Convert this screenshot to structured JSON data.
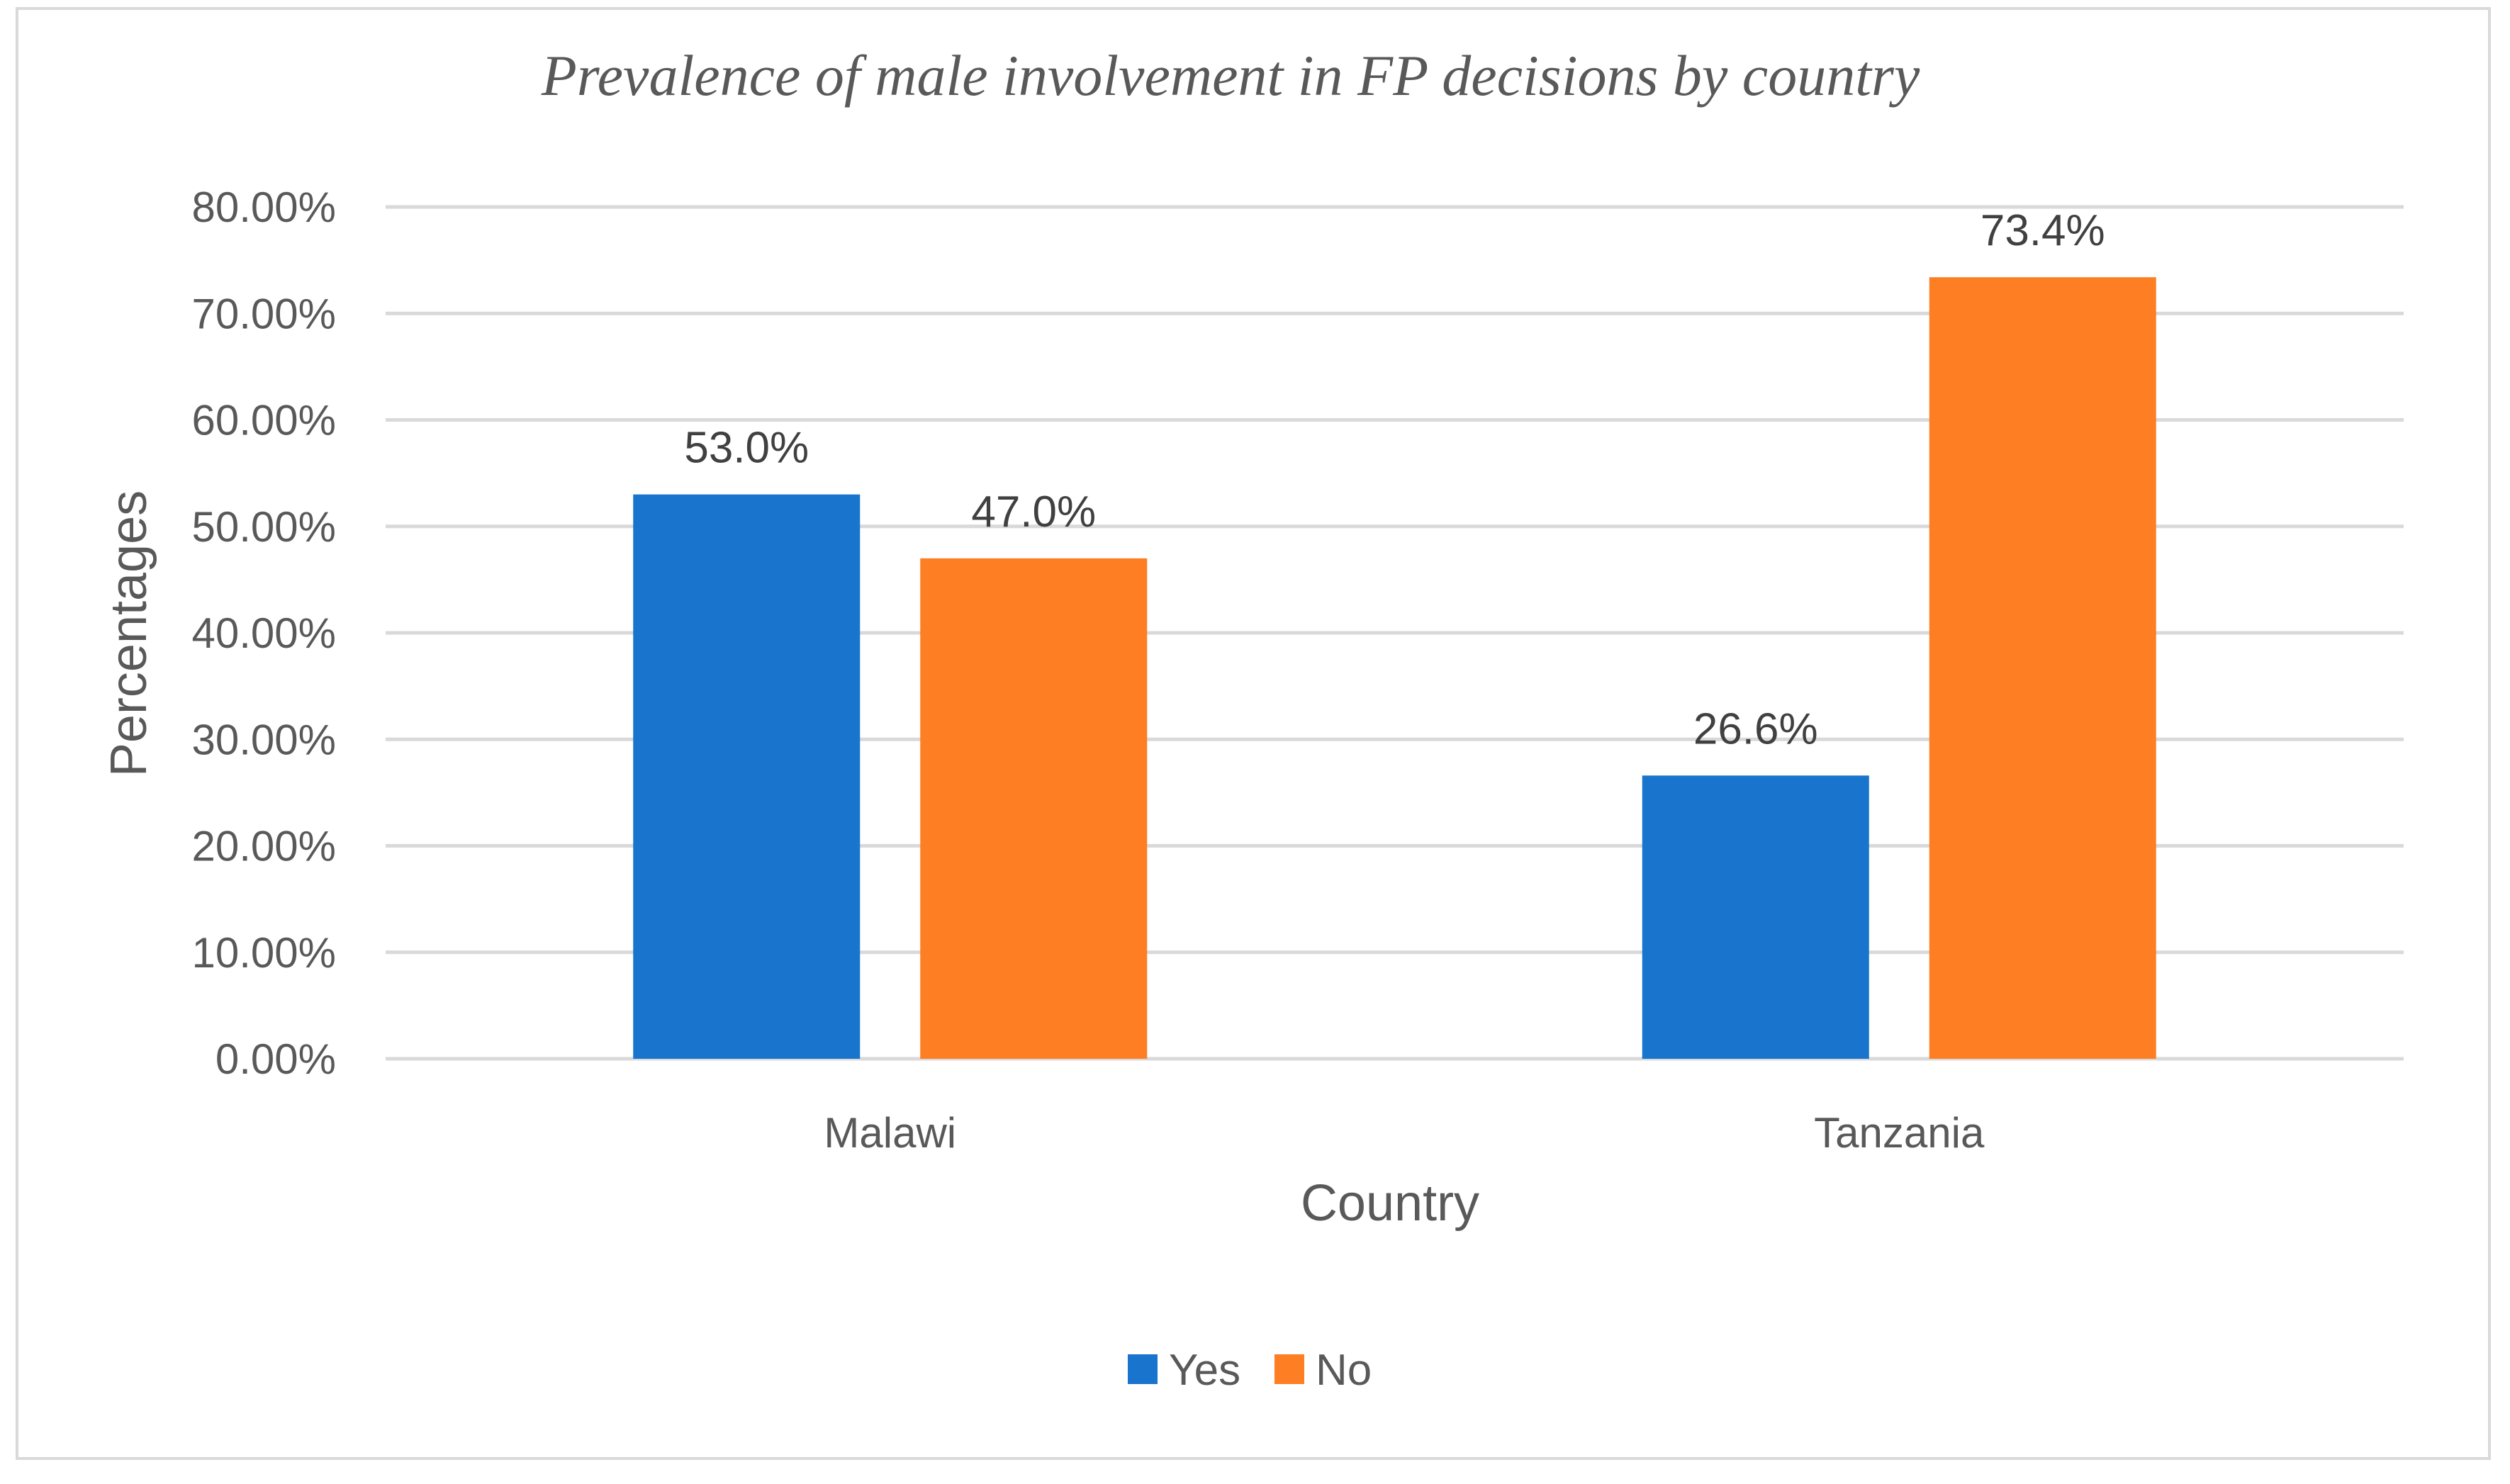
{
  "chart_data": {
    "type": "bar",
    "title": "Prevalence of male involvement in FP decisions by country",
    "xlabel": "Country",
    "ylabel": "Percentages",
    "categories": [
      "Malawi",
      "Tanzania"
    ],
    "series": [
      {
        "name": "Yes",
        "color": "#1874cd",
        "values": [
          53.0,
          26.6
        ],
        "labels": [
          "53.0%",
          "26.6%"
        ]
      },
      {
        "name": "No",
        "color": "#fd7e23",
        "values": [
          47.0,
          73.4
        ],
        "labels": [
          "47.0%",
          "73.4%"
        ]
      }
    ],
    "ylim": [
      0,
      80
    ],
    "yticks": [
      0,
      10,
      20,
      30,
      40,
      50,
      60,
      70,
      80
    ],
    "ytick_labels": [
      "0.00%",
      "10.00%",
      "20.00%",
      "30.00%",
      "40.00%",
      "50.00%",
      "60.00%",
      "70.00%",
      "80.00%"
    ],
    "grid": true,
    "legend_position": "bottom"
  }
}
